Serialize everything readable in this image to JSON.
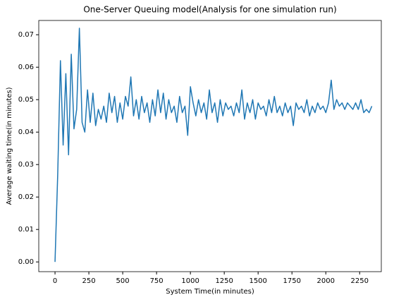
{
  "chart_data": {
    "type": "line",
    "title": "One-Server Queuing model(Analysis for one simulation run)",
    "x_label": "System Time(in minutes)",
    "y_label": "Average waiting time(in minutes)",
    "x": [
      0,
      20,
      40,
      60,
      80,
      100,
      120,
      140,
      160,
      180,
      200,
      220,
      240,
      260,
      280,
      300,
      320,
      340,
      360,
      380,
      400,
      420,
      440,
      460,
      480,
      500,
      520,
      540,
      560,
      580,
      600,
      620,
      640,
      660,
      680,
      700,
      720,
      740,
      760,
      780,
      800,
      820,
      840,
      860,
      880,
      900,
      920,
      940,
      960,
      980,
      1000,
      1020,
      1040,
      1060,
      1080,
      1100,
      1120,
      1140,
      1160,
      1180,
      1200,
      1220,
      1240,
      1260,
      1280,
      1300,
      1320,
      1340,
      1360,
      1380,
      1400,
      1420,
      1440,
      1460,
      1480,
      1500,
      1520,
      1540,
      1560,
      1580,
      1600,
      1620,
      1640,
      1660,
      1680,
      1700,
      1720,
      1740,
      1760,
      1780,
      1800,
      1820,
      1840,
      1860,
      1880,
      1900,
      1920,
      1940,
      1960,
      1980,
      2000,
      2020,
      2040,
      2060,
      2080,
      2100,
      2120,
      2140,
      2160,
      2180,
      2200,
      2220,
      2240,
      2260,
      2280,
      2300,
      2320,
      2340
    ],
    "series": [
      {
        "name": "Average waiting time",
        "color": "#1f77b4",
        "values": [
          0.0,
          0.027,
          0.062,
          0.036,
          0.058,
          0.033,
          0.064,
          0.041,
          0.047,
          0.072,
          0.043,
          0.04,
          0.053,
          0.043,
          0.052,
          0.042,
          0.047,
          0.044,
          0.048,
          0.043,
          0.052,
          0.046,
          0.051,
          0.043,
          0.049,
          0.044,
          0.051,
          0.048,
          0.057,
          0.045,
          0.05,
          0.044,
          0.051,
          0.046,
          0.049,
          0.043,
          0.05,
          0.045,
          0.053,
          0.046,
          0.052,
          0.044,
          0.05,
          0.046,
          0.048,
          0.043,
          0.051,
          0.046,
          0.048,
          0.039,
          0.054,
          0.049,
          0.045,
          0.05,
          0.046,
          0.049,
          0.044,
          0.053,
          0.046,
          0.049,
          0.043,
          0.05,
          0.045,
          0.049,
          0.047,
          0.048,
          0.045,
          0.049,
          0.046,
          0.053,
          0.044,
          0.049,
          0.046,
          0.05,
          0.044,
          0.049,
          0.047,
          0.048,
          0.045,
          0.05,
          0.046,
          0.051,
          0.046,
          0.048,
          0.045,
          0.049,
          0.046,
          0.048,
          0.042,
          0.049,
          0.047,
          0.048,
          0.046,
          0.05,
          0.045,
          0.048,
          0.046,
          0.049,
          0.047,
          0.048,
          0.046,
          0.049,
          0.056,
          0.047,
          0.05,
          0.048,
          0.049,
          0.047,
          0.049,
          0.048,
          0.047,
          0.049,
          0.047,
          0.05,
          0.046,
          0.047,
          0.046,
          0.048
        ]
      }
    ],
    "xlim": [
      -120,
      2410
    ],
    "ylim": [
      -0.003,
      0.0744
    ],
    "xticks": [
      0,
      250,
      500,
      750,
      1000,
      1250,
      1500,
      1750,
      2000,
      2250
    ],
    "yticks": [
      {
        "value": 0,
        "label": "0.00"
      },
      {
        "value": 0.01,
        "label": "0.01"
      },
      {
        "value": 0.02,
        "label": "0.02"
      },
      {
        "value": 0.03,
        "label": "0.03"
      },
      {
        "value": 0.04,
        "label": "0.04"
      },
      {
        "value": 0.05,
        "label": "0.05"
      },
      {
        "value": 0.06,
        "label": "0.06"
      },
      {
        "value": 0.07,
        "label": "0.07"
      }
    ]
  }
}
